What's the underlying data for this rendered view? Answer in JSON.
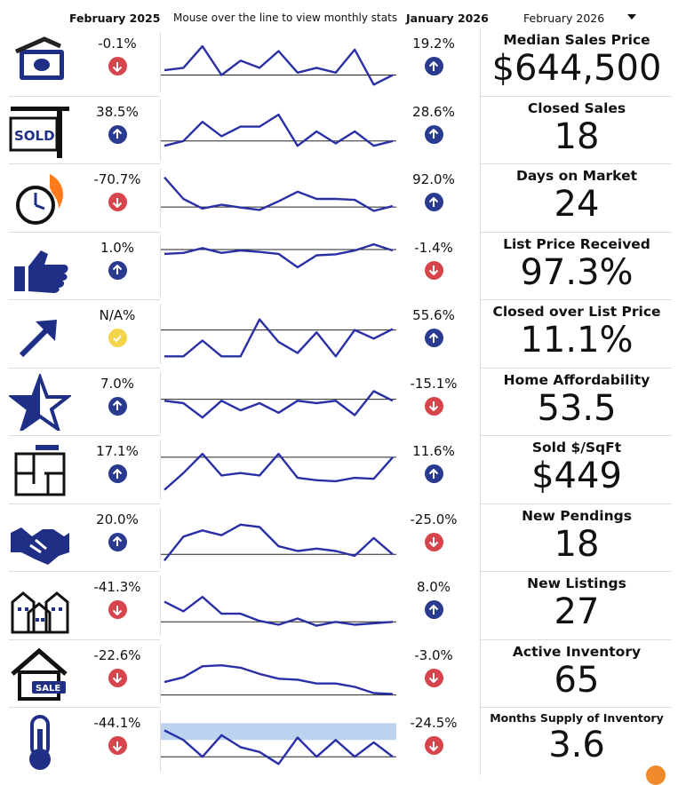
{
  "header": {
    "prev_period": "February 2025",
    "hint": "Mouse over the line to view monthly stats",
    "cur_period": "January 2026",
    "selected_period": "February 2026"
  },
  "colors": {
    "line": "#2a2fa6",
    "up": "#2a3b8f",
    "down": "#d6454b",
    "neutral": "#f3d54b",
    "icon": "#1f2f86",
    "band": "#bcd3f0"
  },
  "rows": [
    {
      "icon": "money-icon",
      "prev": "-0.1%",
      "prev_dir": "down",
      "cur": "19.2%",
      "cur_dir": "up",
      "label": "Median Sales Price",
      "value": "$644,500",
      "trend": [
        0.35,
        0.4,
        0.85,
        0.25,
        0.55,
        0.4,
        0.75,
        0.3,
        0.4,
        0.3,
        0.78,
        0.05,
        0.25
      ],
      "baseline": 0.25
    },
    {
      "icon": "sold-sign-icon",
      "prev": "38.5%",
      "prev_dir": "up",
      "cur": "28.6%",
      "cur_dir": "up",
      "label": "Closed Sales",
      "value": "18",
      "trend": [
        0.2,
        0.3,
        0.7,
        0.4,
        0.6,
        0.6,
        0.85,
        0.2,
        0.5,
        0.25,
        0.5,
        0.2,
        0.3
      ],
      "baseline": 0.3
    },
    {
      "icon": "stopwatch-fire-icon",
      "prev": "-70.7%",
      "prev_dir": "down",
      "cur": "92.0%",
      "cur_dir": "up",
      "label": "Days on Market",
      "value": "24",
      "trend": [
        0.95,
        0.5,
        0.3,
        0.38,
        0.32,
        0.27,
        0.45,
        0.65,
        0.5,
        0.5,
        0.48,
        0.25,
        0.35
      ],
      "baseline": 0.33
    },
    {
      "icon": "thumbs-up-icon",
      "prev": "1.0%",
      "prev_dir": "up",
      "cur": "-1.4%",
      "cur_dir": "down",
      "label": "List Price Received",
      "value": "97.3%",
      "trend": [
        0.78,
        0.8,
        0.9,
        0.8,
        0.85,
        0.82,
        0.78,
        0.5,
        0.75,
        0.77,
        0.85,
        0.98,
        0.85
      ],
      "baseline": 0.87
    },
    {
      "icon": "trend-arrow-icon",
      "prev": "N/A%",
      "prev_dir": "neutral",
      "cur": "55.6%",
      "cur_dir": "up",
      "label": "Closed over List Price",
      "value": "11.1%",
      "trend": [
        0.05,
        0.05,
        0.38,
        0.05,
        0.05,
        0.82,
        0.35,
        0.12,
        0.55,
        0.05,
        0.6,
        0.42,
        0.62
      ],
      "baseline": 0.6
    },
    {
      "icon": "star-icon",
      "prev": "7.0%",
      "prev_dir": "up",
      "cur": "-15.1%",
      "cur_dir": "down",
      "label": "Home Affordability",
      "value": "53.5",
      "trend": [
        0.55,
        0.5,
        0.2,
        0.55,
        0.35,
        0.5,
        0.3,
        0.55,
        0.5,
        0.55,
        0.25,
        0.75,
        0.55
      ],
      "baseline": 0.58
    },
    {
      "icon": "floor-plan-icon",
      "prev": "17.1%",
      "prev_dir": "up",
      "cur": "11.6%",
      "cur_dir": "up",
      "label": "Sold $/SqFt",
      "value": "$449",
      "trend": [
        0.1,
        0.45,
        0.85,
        0.4,
        0.45,
        0.4,
        0.85,
        0.35,
        0.3,
        0.28,
        0.35,
        0.33,
        0.78
      ],
      "baseline": 0.78
    },
    {
      "icon": "handshake-icon",
      "prev": "20.0%",
      "prev_dir": "up",
      "cur": "-25.0%",
      "cur_dir": "down",
      "label": "New Pendings",
      "value": "18",
      "trend": [
        0.05,
        0.55,
        0.68,
        0.58,
        0.8,
        0.75,
        0.35,
        0.25,
        0.3,
        0.25,
        0.15,
        0.52,
        0.18
      ],
      "baseline": 0.18
    },
    {
      "icon": "buildings-icon",
      "prev": "-41.3%",
      "prev_dir": "down",
      "cur": "8.0%",
      "cur_dir": "up",
      "label": "New Listings",
      "value": "27",
      "trend": [
        0.6,
        0.4,
        0.7,
        0.35,
        0.35,
        0.2,
        0.12,
        0.25,
        0.1,
        0.18,
        0.12,
        0.15,
        0.18
      ],
      "baseline": 0.18
    },
    {
      "icon": "house-sale-icon",
      "prev": "-22.6%",
      "prev_dir": "down",
      "cur": "-3.0%",
      "cur_dir": "down",
      "label": "Active Inventory",
      "value": "65",
      "trend": [
        0.35,
        0.45,
        0.68,
        0.7,
        0.65,
        0.52,
        0.42,
        0.4,
        0.32,
        0.32,
        0.25,
        0.12,
        0.1
      ],
      "baseline": 0.08
    },
    {
      "icon": "thermometer-icon",
      "prev": "-44.1%",
      "prev_dir": "down",
      "cur": "-24.5%",
      "cur_dir": "down",
      "label": "Months Supply of Inventory",
      "value": "3.6",
      "trend": [
        0.75,
        0.55,
        0.2,
        0.65,
        0.4,
        0.3,
        0.05,
        0.6,
        0.2,
        0.55,
        0.2,
        0.5,
        0.2
      ],
      "baseline": 0.2,
      "band": [
        0.55,
        0.9
      ]
    }
  ]
}
